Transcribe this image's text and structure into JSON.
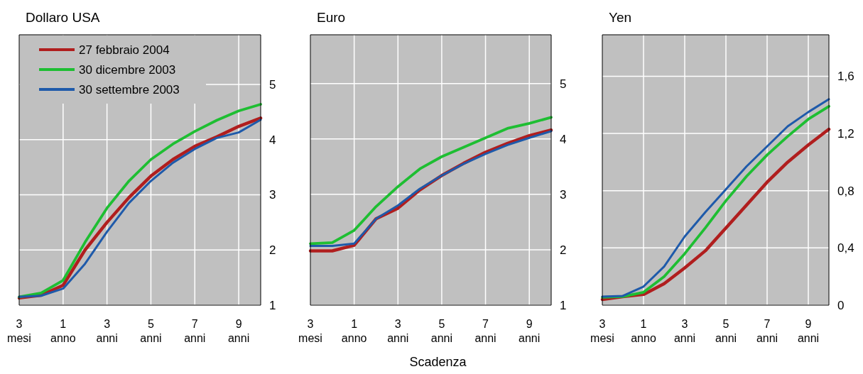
{
  "chart_data": [
    {
      "type": "line",
      "title": "Dollaro USA",
      "categories": [
        "3 mesi",
        null,
        "1 anno",
        null,
        "3 anni",
        null,
        "5 anni",
        null,
        "7 anni",
        null,
        "9 anni",
        null
      ],
      "ylim": [
        1,
        5.9
      ],
      "yticks": [
        1,
        2,
        3,
        4,
        5
      ],
      "grid": true,
      "legend": "top left",
      "series": [
        {
          "name": "27 febbraio 2004",
          "color": "#b01e1e",
          "values": [
            1.13,
            1.18,
            1.36,
            2.0,
            2.5,
            2.95,
            3.34,
            3.64,
            3.88,
            4.05,
            4.24,
            4.39
          ]
        },
        {
          "name": "30 dicembre 2003",
          "color": "#1ebe32",
          "values": [
            1.15,
            1.22,
            1.45,
            2.14,
            2.76,
            3.25,
            3.64,
            3.92,
            4.15,
            4.35,
            4.52,
            4.64
          ]
        },
        {
          "name": "30 settembre 2003",
          "color": "#1e5aaa",
          "values": [
            1.15,
            1.17,
            1.3,
            1.75,
            2.33,
            2.85,
            3.25,
            3.58,
            3.83,
            4.03,
            4.13,
            4.36
          ]
        }
      ]
    },
    {
      "type": "line",
      "title": "Euro",
      "xlabel": "Scadenza",
      "categories": [
        "3 mesi",
        null,
        "1 anno",
        null,
        "3 anni",
        null,
        "5 anni",
        null,
        "7 anni",
        null,
        "9 anni",
        null
      ],
      "ylim": [
        1,
        5.88
      ],
      "yticks": [
        1,
        2,
        3,
        4,
        5
      ],
      "grid": true,
      "series": [
        {
          "color": "#b01e1e",
          "values": [
            1.98,
            1.98,
            2.08,
            2.56,
            2.75,
            3.08,
            3.34,
            3.56,
            3.76,
            3.92,
            4.06,
            4.16
          ]
        },
        {
          "color": "#1ebe32",
          "values": [
            2.11,
            2.13,
            2.35,
            2.78,
            3.14,
            3.46,
            3.68,
            3.85,
            4.02,
            4.19,
            4.28,
            4.39
          ]
        },
        {
          "color": "#1e5aaa",
          "values": [
            2.07,
            2.07,
            2.11,
            2.56,
            2.8,
            3.1,
            3.34,
            3.55,
            3.73,
            3.89,
            4.02,
            4.14
          ]
        }
      ]
    },
    {
      "type": "line",
      "title": "Yen",
      "categories": [
        "3 mesi",
        null,
        "1 anno",
        null,
        "3 anni",
        null,
        "5 anni",
        null,
        "7 anni",
        null,
        "9 anni",
        null
      ],
      "ylim": [
        0,
        1.89
      ],
      "yticks": [
        0,
        {
          "value": 0.4,
          "label": "0,4"
        },
        {
          "value": 0.8,
          "label": "0,8"
        },
        {
          "value": 1.2,
          "label": "1,2"
        },
        {
          "value": 1.6,
          "label": "1,6"
        }
      ],
      "grid": true,
      "series": [
        {
          "color": "#b01e1e",
          "values": [
            0.04,
            0.06,
            0.075,
            0.15,
            0.26,
            0.38,
            0.54,
            0.7,
            0.86,
            1.0,
            1.12,
            1.23
          ]
        },
        {
          "color": "#1ebe32",
          "values": [
            0.055,
            0.06,
            0.09,
            0.2,
            0.36,
            0.54,
            0.73,
            0.9,
            1.05,
            1.18,
            1.3,
            1.39
          ]
        },
        {
          "color": "#1e5aaa",
          "values": [
            0.06,
            0.065,
            0.13,
            0.27,
            0.48,
            0.65,
            0.81,
            0.97,
            1.11,
            1.25,
            1.35,
            1.44
          ]
        }
      ]
    }
  ]
}
